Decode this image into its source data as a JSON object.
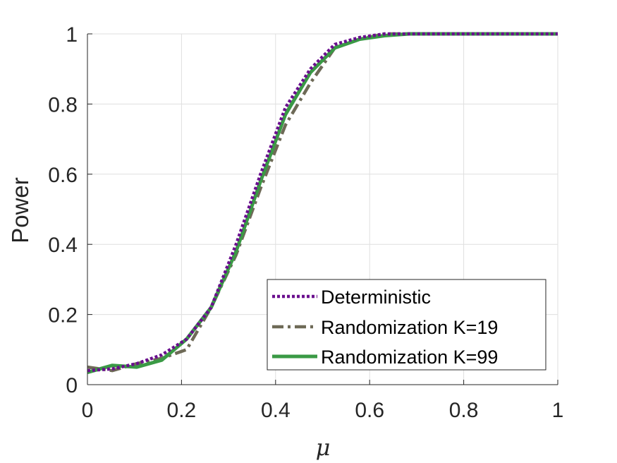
{
  "chart_data": {
    "type": "line",
    "xlabel": "μ",
    "ylabel": "Power",
    "xlim": [
      0,
      1
    ],
    "ylim": [
      0,
      1
    ],
    "x_ticks": [
      "0",
      "0.2",
      "0.4",
      "0.6",
      "0.8",
      "1"
    ],
    "y_ticks": [
      "0",
      "0.2",
      "0.4",
      "0.6",
      "0.8",
      "1"
    ],
    "grid": true,
    "legend_position": "bottom-right",
    "series": [
      {
        "name": "Deterministic",
        "color": "#6a0f8e",
        "style": "dotted",
        "x": [
          0,
          0.053,
          0.105,
          0.158,
          0.211,
          0.263,
          0.316,
          0.368,
          0.421,
          0.474,
          0.526,
          0.579,
          0.632,
          0.684,
          0.737,
          0.789,
          0.842,
          0.895,
          0.947,
          1
        ],
        "y": [
          0.04,
          0.045,
          0.06,
          0.085,
          0.13,
          0.22,
          0.4,
          0.6,
          0.79,
          0.9,
          0.97,
          0.99,
          1,
          1,
          1,
          1,
          1,
          1,
          1,
          1
        ]
      },
      {
        "name": "Randomization K=19",
        "color": "#6e6a57",
        "style": "dashdot",
        "x": [
          0,
          0.053,
          0.105,
          0.158,
          0.211,
          0.263,
          0.316,
          0.368,
          0.421,
          0.474,
          0.526,
          0.579,
          0.632,
          0.684,
          0.737,
          0.789,
          0.842,
          0.895,
          0.947,
          1
        ],
        "y": [
          0.05,
          0.04,
          0.06,
          0.075,
          0.1,
          0.22,
          0.37,
          0.56,
          0.74,
          0.86,
          0.96,
          0.985,
          1,
          1,
          1,
          1,
          1,
          1,
          1,
          1
        ]
      },
      {
        "name": "Randomization K=99",
        "color": "#3a9a45",
        "style": "solid",
        "x": [
          0,
          0.053,
          0.105,
          0.158,
          0.211,
          0.263,
          0.316,
          0.368,
          0.421,
          0.474,
          0.526,
          0.579,
          0.632,
          0.684,
          0.737,
          0.789,
          0.842,
          0.895,
          0.947,
          1
        ],
        "y": [
          0.035,
          0.055,
          0.05,
          0.07,
          0.13,
          0.22,
          0.38,
          0.58,
          0.77,
          0.89,
          0.96,
          0.985,
          0.995,
          1,
          1,
          1,
          1,
          1,
          1,
          1
        ]
      }
    ]
  }
}
